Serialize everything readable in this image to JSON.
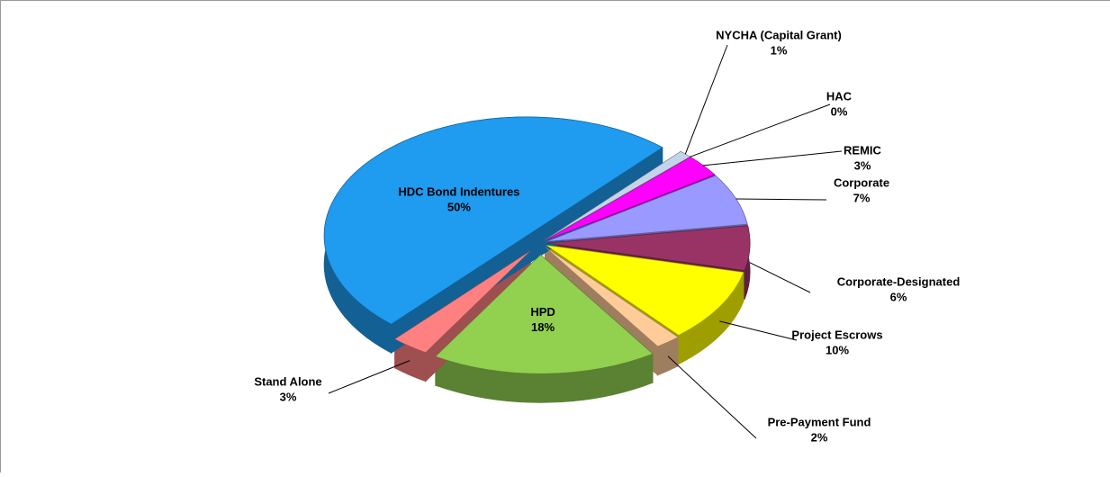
{
  "chart_data": {
    "type": "pie",
    "categories": [
      "NYCHA (Capital Grant)",
      "HAC",
      "REMIC",
      "Corporate",
      "Corporate-Designated",
      "Project Escrows",
      "Pre-Payment Fund",
      "HPD",
      "Stand Alone",
      "HDC Bond Indentures"
    ],
    "values": [
      1,
      0,
      3,
      7,
      6,
      10,
      2,
      18,
      3,
      50
    ],
    "value_labels": [
      "1%",
      "0%",
      "3%",
      "7%",
      "6%",
      "10%",
      "2%",
      "18%",
      "3%",
      "50%"
    ],
    "colors": [
      "#c5d3ea",
      "#bbbbbb",
      "#ff00ff",
      "#9999ff",
      "#993366",
      "#ffff00",
      "#ffcc99",
      "#92d050",
      "#ff8080",
      "#1f9bef"
    ]
  }
}
